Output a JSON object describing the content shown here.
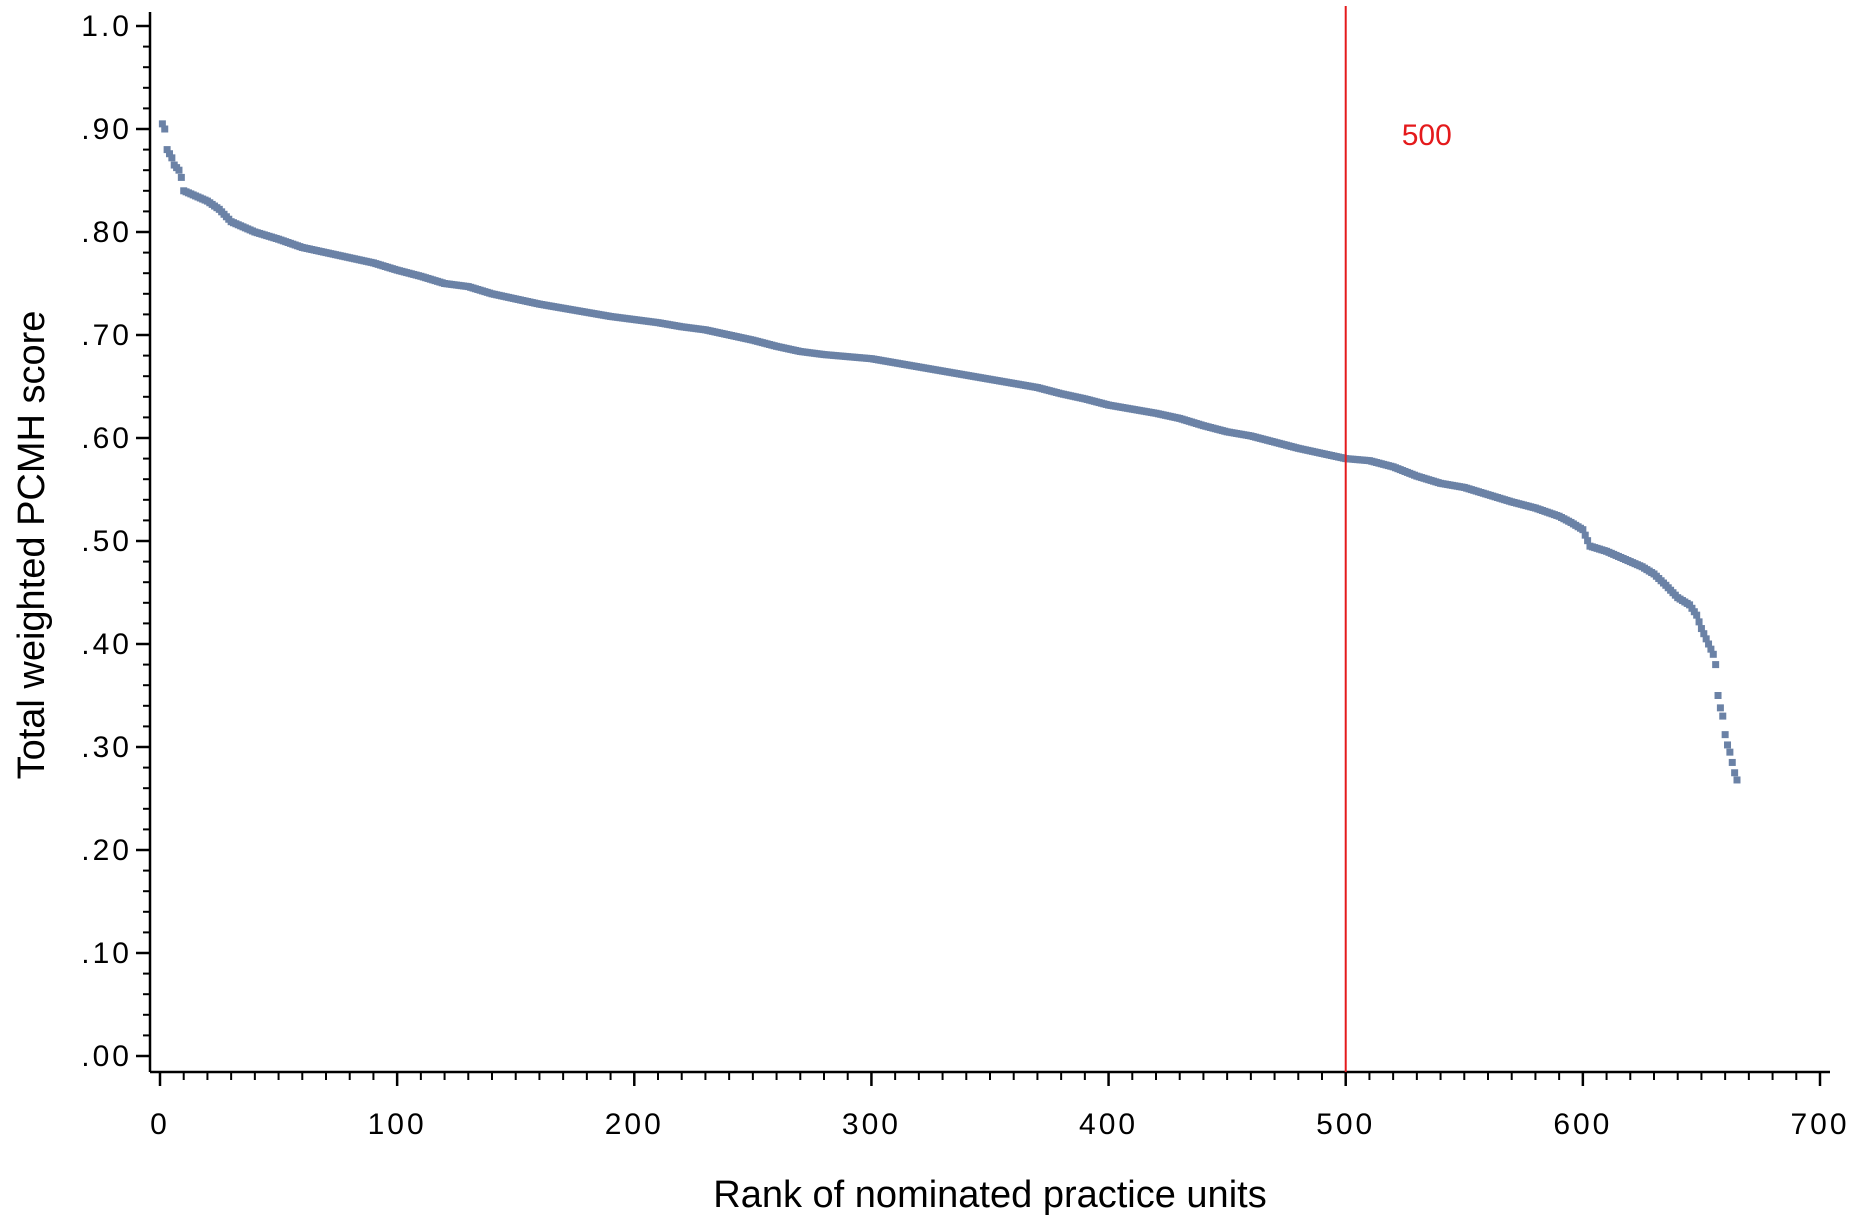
{
  "chart_data": {
    "type": "scatter",
    "xlabel": "Rank of nominated practice units",
    "ylabel": "Total weighted PCMH score",
    "xlim": [
      0,
      700
    ],
    "ylim": [
      0,
      1.0
    ],
    "x_ticks": [
      0,
      100,
      200,
      300,
      400,
      500,
      600,
      700
    ],
    "x_tick_labels": [
      "0",
      "100",
      "200",
      "300",
      "400",
      "500",
      "600",
      "700"
    ],
    "y_ticks": [
      0,
      0.1,
      0.2,
      0.3,
      0.4,
      0.5,
      0.6,
      0.7,
      0.8,
      0.9,
      1.0
    ],
    "y_tick_labels": [
      ".00",
      ".10",
      ".20",
      ".30",
      ".40",
      ".50",
      ".60",
      ".70",
      ".80",
      ".90",
      "1.0"
    ],
    "grid": false,
    "marker_color": "#6b82a6",
    "reference_line": {
      "x": 500,
      "label": "500",
      "color": "#e41a1c"
    },
    "series": [
      {
        "points": [
          [
            1,
            0.905
          ],
          [
            2,
            0.9
          ],
          [
            3,
            0.88
          ],
          [
            5,
            0.872
          ],
          [
            6,
            0.865
          ],
          [
            8,
            0.86
          ],
          [
            9,
            0.853
          ],
          [
            10,
            0.84
          ],
          [
            15,
            0.835
          ],
          [
            20,
            0.83
          ],
          [
            25,
            0.822
          ],
          [
            30,
            0.81
          ],
          [
            35,
            0.805
          ],
          [
            40,
            0.8
          ],
          [
            50,
            0.793
          ],
          [
            60,
            0.785
          ],
          [
            70,
            0.78
          ],
          [
            80,
            0.775
          ],
          [
            90,
            0.77
          ],
          [
            100,
            0.763
          ],
          [
            110,
            0.757
          ],
          [
            120,
            0.75
          ],
          [
            130,
            0.747
          ],
          [
            140,
            0.74
          ],
          [
            150,
            0.735
          ],
          [
            160,
            0.73
          ],
          [
            170,
            0.726
          ],
          [
            180,
            0.722
          ],
          [
            190,
            0.718
          ],
          [
            200,
            0.715
          ],
          [
            210,
            0.712
          ],
          [
            220,
            0.708
          ],
          [
            230,
            0.705
          ],
          [
            240,
            0.7
          ],
          [
            250,
            0.695
          ],
          [
            260,
            0.689
          ],
          [
            270,
            0.684
          ],
          [
            280,
            0.681
          ],
          [
            290,
            0.679
          ],
          [
            300,
            0.677
          ],
          [
            310,
            0.673
          ],
          [
            320,
            0.669
          ],
          [
            330,
            0.665
          ],
          [
            340,
            0.661
          ],
          [
            350,
            0.657
          ],
          [
            360,
            0.653
          ],
          [
            370,
            0.649
          ],
          [
            380,
            0.643
          ],
          [
            390,
            0.638
          ],
          [
            400,
            0.632
          ],
          [
            410,
            0.628
          ],
          [
            420,
            0.624
          ],
          [
            430,
            0.619
          ],
          [
            440,
            0.612
          ],
          [
            450,
            0.606
          ],
          [
            460,
            0.602
          ],
          [
            470,
            0.596
          ],
          [
            480,
            0.59
          ],
          [
            490,
            0.585
          ],
          [
            500,
            0.58
          ],
          [
            510,
            0.578
          ],
          [
            520,
            0.572
          ],
          [
            530,
            0.563
          ],
          [
            540,
            0.556
          ],
          [
            550,
            0.552
          ],
          [
            560,
            0.545
          ],
          [
            570,
            0.538
          ],
          [
            580,
            0.532
          ],
          [
            590,
            0.524
          ],
          [
            595,
            0.518
          ],
          [
            600,
            0.511
          ],
          [
            603,
            0.495
          ],
          [
            610,
            0.49
          ],
          [
            620,
            0.48
          ],
          [
            625,
            0.475
          ],
          [
            630,
            0.468
          ],
          [
            635,
            0.457
          ],
          [
            640,
            0.445
          ],
          [
            645,
            0.438
          ],
          [
            648,
            0.428
          ],
          [
            650,
            0.415
          ],
          [
            652,
            0.405
          ],
          [
            654,
            0.395
          ],
          [
            655,
            0.39
          ],
          [
            656,
            0.38
          ],
          [
            657,
            0.35
          ],
          [
            658,
            0.338
          ],
          [
            659,
            0.33
          ],
          [
            660,
            0.312
          ],
          [
            661,
            0.302
          ],
          [
            662,
            0.295
          ],
          [
            663,
            0.285
          ],
          [
            664,
            0.275
          ],
          [
            665,
            0.268
          ]
        ]
      }
    ]
  }
}
